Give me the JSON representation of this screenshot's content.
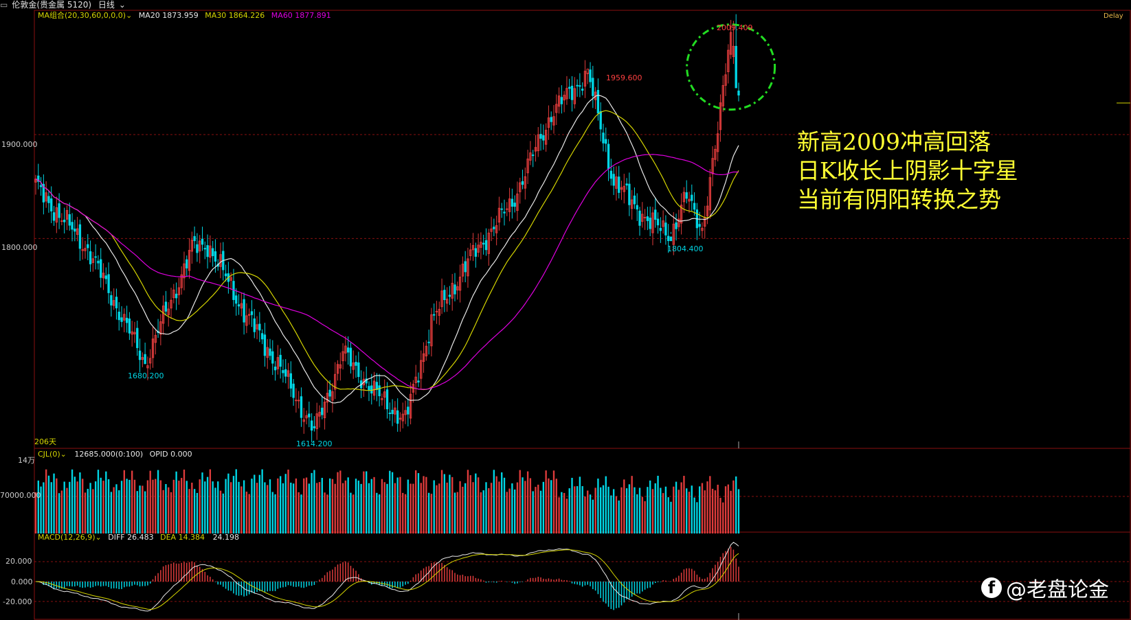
{
  "header": {
    "symbol": "伦敦金(贵金属 5120)",
    "period": "日线"
  },
  "ma_legend": {
    "name": "MA组合(20,30,60,0,0,0)",
    "ma20": "MA20 1873.959",
    "ma30": "MA30 1864.226",
    "ma60": "MA60 1877.891"
  },
  "delay_label": "Delay",
  "price_axis": {
    "ticks": [
      "1900.000",
      "1800.000"
    ],
    "days_label": "206天"
  },
  "price_annotations": {
    "high_2009": "2009.409",
    "high_1959": "1959.600",
    "low_1804": "1804.400",
    "low_1680": "1680.200",
    "low_1614": "1614.200"
  },
  "volume_panel": {
    "legend": "CJL(0)",
    "value": "12685.000(0:100)",
    "opid": "OPID 0.000",
    "axis_top": "14万",
    "axis_mid": "70000.000"
  },
  "macd_panel": {
    "legend": "MACD(12,26,9)",
    "diff": "DIFF 26.483",
    "dea": "DEA 14.384",
    "macd": "24.198",
    "ticks": [
      "20.000",
      "0.000",
      "-20.000"
    ]
  },
  "annotation_text": [
    "新高2009冲高回落",
    "日K收长上阴影十字星",
    "当前有阴阳转换之势"
  ],
  "watermark": "@老盘论金",
  "colors": {
    "up": "#e03c3c",
    "down": "#00d7e6",
    "ma20": "#e8e8e8",
    "ma30": "#d6d600",
    "ma60": "#e000e0",
    "circle": "#22dd22",
    "annotation": "#ffff33"
  },
  "chart_data": {
    "type": "candlestick",
    "bars": 206,
    "price_anchors": [
      {
        "bar": 0,
        "price": 1850
      },
      {
        "bar": 20,
        "price": 1790
      },
      {
        "bar": 38,
        "price": 1700
      },
      {
        "bar": 42,
        "price": 1680.2
      },
      {
        "bar": 60,
        "price": 1790
      },
      {
        "bar": 66,
        "price": 1795
      },
      {
        "bar": 80,
        "price": 1730
      },
      {
        "bar": 95,
        "price": 1670
      },
      {
        "bar": 107,
        "price": 1614.2
      },
      {
        "bar": 118,
        "price": 1690
      },
      {
        "bar": 130,
        "price": 1652
      },
      {
        "bar": 142,
        "price": 1625
      },
      {
        "bar": 152,
        "price": 1720
      },
      {
        "bar": 168,
        "price": 1785
      },
      {
        "bar": 183,
        "price": 1835
      },
      {
        "bar": 198,
        "price": 1920
      },
      {
        "bar": 212,
        "price": 1959.6
      },
      {
        "bar": 222,
        "price": 1855
      },
      {
        "bar": 236,
        "price": 1815
      },
      {
        "bar": 244,
        "price": 1804.4
      },
      {
        "bar": 250,
        "price": 1840
      },
      {
        "bar": 256,
        "price": 1810
      },
      {
        "bar": 262,
        "price": 1900
      },
      {
        "bar": 266,
        "price": 1985
      },
      {
        "bar": 268,
        "price": 2009.409
      },
      {
        "bar": 270,
        "price": 1940
      }
    ],
    "total_bars": 271,
    "ylim": [
      1600,
      2015
    ],
    "ma_periods": [
      20,
      30,
      60
    ],
    "macd_ticks": [
      20,
      0,
      -20
    ],
    "volume_ticks": [
      70000
    ]
  }
}
